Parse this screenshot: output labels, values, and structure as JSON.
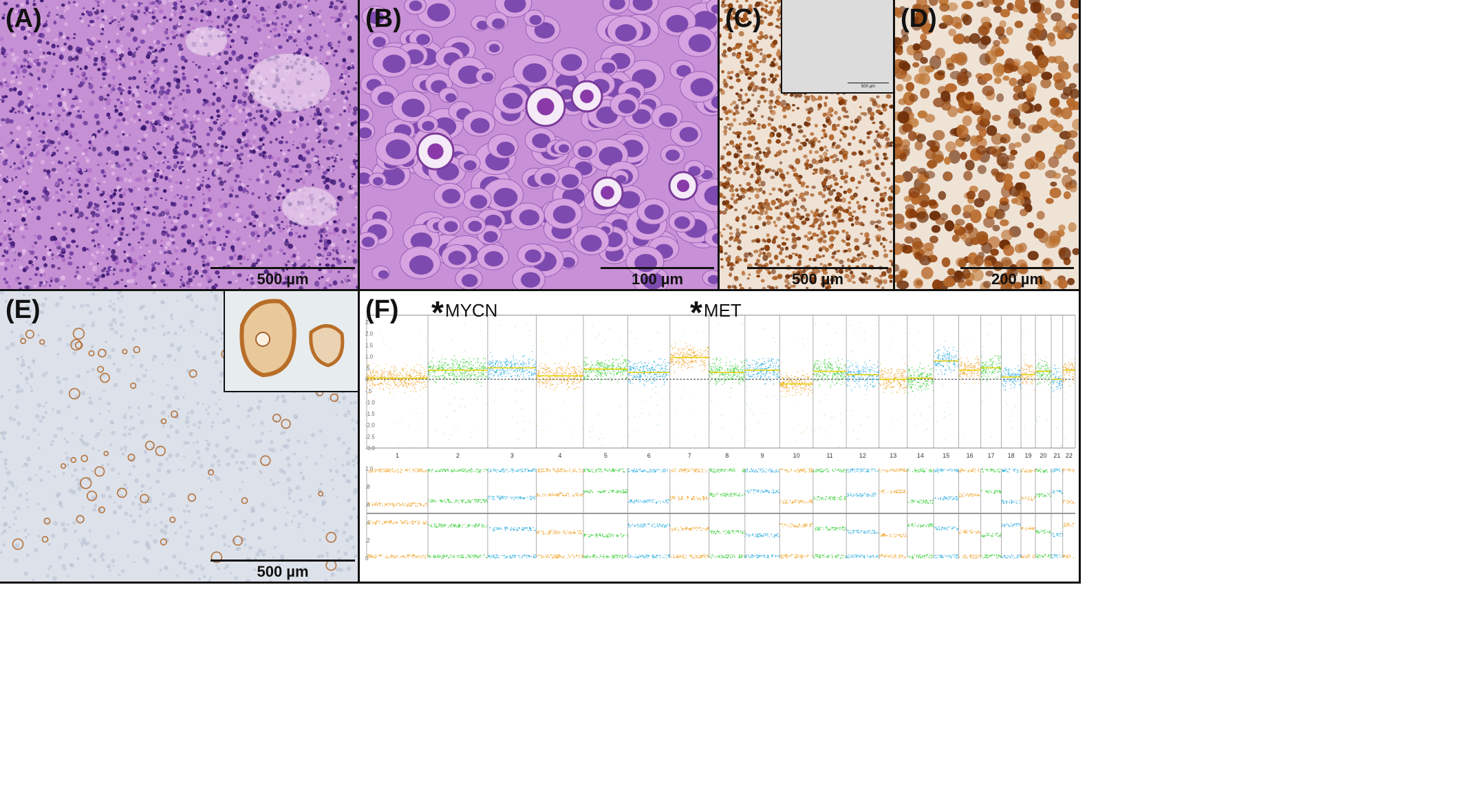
{
  "panels": {
    "A": {
      "label": "(A)",
      "scale": "500 µm"
    },
    "B": {
      "label": "(B)",
      "scale": "100 µm"
    },
    "C": {
      "label": "(C)",
      "scale": "500 µm",
      "inset_scale": "500 µm"
    },
    "D": {
      "label": "(D)",
      "scale": "200 µm"
    },
    "E": {
      "label": "(E)",
      "scale": "500 µm"
    },
    "F": {
      "label": "(F)"
    }
  },
  "genes": [
    {
      "name": "MYCN",
      "chromosome": "2"
    },
    {
      "name": "MET",
      "chromosome": "7"
    }
  ],
  "colors": {
    "orange": "#f0a020",
    "green": "#2ecc2e",
    "blue": "#22aadd",
    "he_bg": "#c98fd6",
    "he_dark": "#5b2d8e",
    "ihc_bg": "#f1e7dc",
    "ihc_brown": "#9c4d12",
    "e_bg": "#dfe3ea"
  },
  "chart_data": {
    "type": "scatter",
    "chromosomes": [
      "1",
      "2",
      "3",
      "4",
      "5",
      "6",
      "7",
      "8",
      "9",
      "10",
      "11",
      "12",
      "13",
      "14",
      "15",
      "16",
      "17",
      "18",
      "19",
      "20",
      "21",
      "22"
    ],
    "copy_number": {
      "y_ticks": [
        "2.5",
        "2.0",
        "1.5",
        "1.0",
        ".5",
        "0",
        "-.5",
        "-1.0",
        "-1.5",
        "-2.0",
        "-2.5",
        "-3.0"
      ],
      "ylim": [
        -3.0,
        2.8
      ],
      "levels": [
        0.05,
        0.4,
        0.5,
        0.15,
        0.45,
        0.3,
        0.95,
        0.3,
        0.4,
        -0.2,
        0.35,
        0.2,
        0.0,
        0.05,
        0.8,
        0.4,
        0.5,
        0.1,
        0.2,
        0.35,
        0.0,
        0.4
      ]
    },
    "b_allele": {
      "y_ticks": [
        "1.0",
        ".8",
        ".6",
        ".4",
        ".2",
        "0"
      ],
      "ylim": [
        0,
        1
      ]
    }
  }
}
